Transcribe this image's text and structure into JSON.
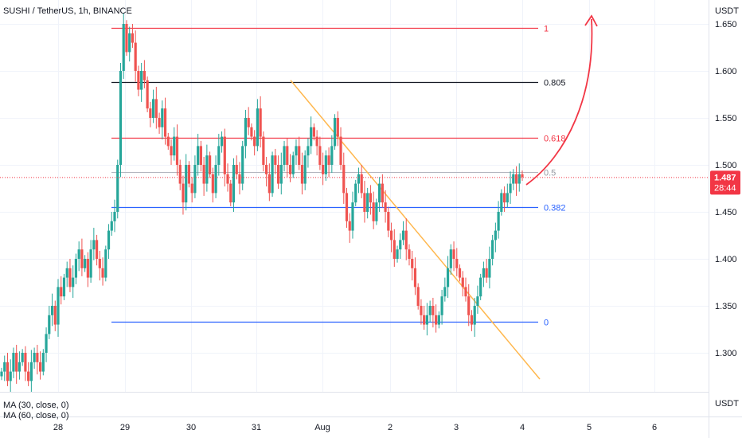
{
  "header": {
    "symbol": "SUSHI / TetherUS, 1h, BINANCE"
  },
  "axis": {
    "currency_top": "USDT",
    "currency_bottom": "USDT"
  },
  "current_price": {
    "value": "1.487",
    "countdown": "28:44"
  },
  "indicators": [
    "MA (30, close, 0)",
    "MA (60, close, 0)"
  ],
  "colors": {
    "bull": "#26a69a",
    "bear": "#ef5350",
    "red_line": "#f23645",
    "black_line": "#131722",
    "blue_line": "#2962ff",
    "trend": "#ffb74d",
    "arrow": "#f23645",
    "price_tag": "#f23645"
  },
  "chart_data": {
    "type": "candlestick",
    "title": "SUSHI / TetherUS, 1h, BINANCE",
    "ylim": [
      1.26,
      1.68
    ],
    "y_ticks": [
      "1.650",
      "1.600",
      "1.550",
      "1.500",
      "1.450",
      "1.400",
      "1.350",
      "1.300"
    ],
    "x_ticks": [
      "28",
      "29",
      "30",
      "31",
      "Aug",
      "2",
      "3",
      "4",
      "5",
      "6"
    ],
    "fib_levels": [
      {
        "label": "1",
        "value": 1.646,
        "color": "red"
      },
      {
        "label": "0.805",
        "value": 1.588,
        "color": "black"
      },
      {
        "label": "0.618",
        "value": 1.529,
        "color": "red"
      },
      {
        "label": "0.5",
        "value": 1.492,
        "color": "gray"
      },
      {
        "label": "0.382",
        "value": 1.455,
        "color": "blue"
      },
      {
        "label": "0",
        "value": 1.333,
        "color": "blue"
      }
    ],
    "trendline": {
      "from": {
        "day": 31.55,
        "price": 1.59
      },
      "to": {
        "day": 4.25,
        "price": 1.272
      }
    },
    "current_price": 1.487,
    "closes": [
      1.28,
      1.29,
      1.27,
      1.28,
      1.3,
      1.28,
      1.29,
      1.3,
      1.28,
      1.27,
      1.29,
      1.3,
      1.29,
      1.28,
      1.3,
      1.32,
      1.34,
      1.35,
      1.33,
      1.37,
      1.36,
      1.38,
      1.39,
      1.37,
      1.38,
      1.4,
      1.41,
      1.39,
      1.4,
      1.38,
      1.41,
      1.42,
      1.4,
      1.39,
      1.38,
      1.41,
      1.43,
      1.44,
      1.45,
      1.5,
      1.6,
      1.65,
      1.62,
      1.64,
      1.63,
      1.6,
      1.58,
      1.6,
      1.59,
      1.56,
      1.55,
      1.57,
      1.55,
      1.54,
      1.56,
      1.53,
      1.52,
      1.51,
      1.53,
      1.5,
      1.48,
      1.46,
      1.5,
      1.48,
      1.47,
      1.5,
      1.52,
      1.5,
      1.48,
      1.51,
      1.49,
      1.47,
      1.5,
      1.52,
      1.53,
      1.49,
      1.48,
      1.46,
      1.5,
      1.49,
      1.48,
      1.52,
      1.55,
      1.54,
      1.53,
      1.52,
      1.56,
      1.53,
      1.5,
      1.49,
      1.47,
      1.51,
      1.5,
      1.48,
      1.5,
      1.52,
      1.5,
      1.49,
      1.51,
      1.52,
      1.5,
      1.48,
      1.51,
      1.52,
      1.54,
      1.53,
      1.52,
      1.5,
      1.49,
      1.51,
      1.5,
      1.52,
      1.55,
      1.53,
      1.5,
      1.47,
      1.44,
      1.43,
      1.46,
      1.48,
      1.49,
      1.47,
      1.45,
      1.47,
      1.46,
      1.44,
      1.46,
      1.48,
      1.46,
      1.45,
      1.43,
      1.42,
      1.4,
      1.41,
      1.42,
      1.43,
      1.41,
      1.4,
      1.39,
      1.37,
      1.35,
      1.34,
      1.33,
      1.34,
      1.35,
      1.34,
      1.33,
      1.34,
      1.36,
      1.37,
      1.39,
      1.41,
      1.4,
      1.39,
      1.38,
      1.37,
      1.36,
      1.34,
      1.33,
      1.35,
      1.36,
      1.38,
      1.39,
      1.38,
      1.4,
      1.42,
      1.43,
      1.45,
      1.47,
      1.46,
      1.47,
      1.48,
      1.49,
      1.48,
      1.49,
      1.487
    ]
  }
}
